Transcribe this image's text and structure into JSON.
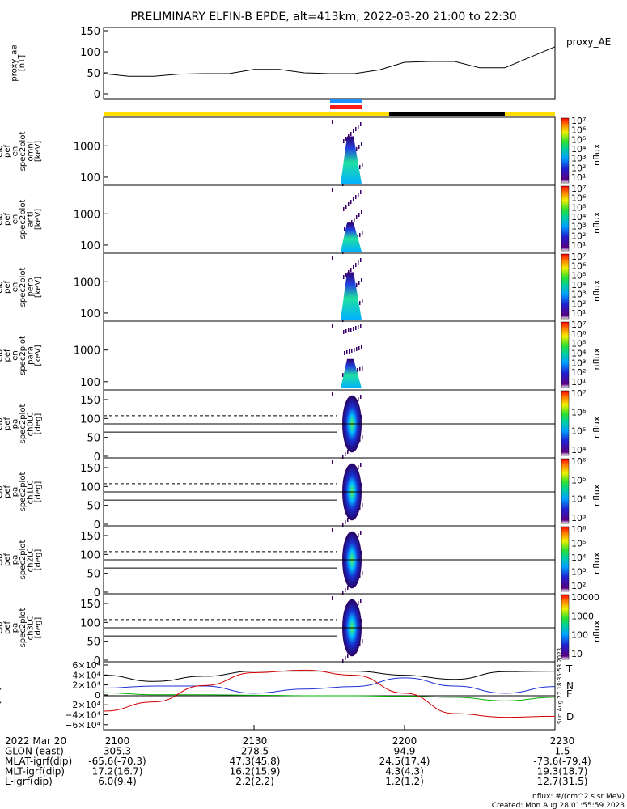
{
  "title": "PRELIMINARY ELFIN-B EPDE, alt=413km, 2022-03-20 21:00 to 22:30",
  "colors": {
    "yellow_bar": "#ffdd00",
    "black_bar": "#000000",
    "blue_marker": "#1e8fff",
    "red_marker": "#ff1a1a",
    "line_T": "#000000",
    "line_N": "#1f2fd6",
    "line_E": "#00b000",
    "line_D": "#d40000"
  },
  "legend_labels": {
    "proxy_ae": "proxy_AE",
    "T": "T",
    "N": "N",
    "E": "E",
    "D": "D",
    "side_stamp": "Sun Aug 27 18:35:58 2023"
  },
  "ylabels": [
    [
      "proxy_ae",
      "[nT]"
    ],
    [
      "elb",
      "pef",
      "en",
      "spec2plot",
      "omni",
      "[keV]"
    ],
    [
      "elb",
      "pef",
      "en",
      "spec2plot",
      "anti",
      "[keV]"
    ],
    [
      "elb",
      "pef",
      "en",
      "spec2plot",
      "perp",
      "[keV]"
    ],
    [
      "elb",
      "pef",
      "en",
      "spec2plot",
      "para",
      "[keV]"
    ],
    [
      "elb",
      "pef",
      "pa",
      "spec2plot",
      "ch0LC",
      "[deg]"
    ],
    [
      "elb",
      "pef",
      "pa",
      "spec2plot",
      "ch1LC",
      "[deg]"
    ],
    [
      "elb",
      "pef",
      "pa",
      "spec2plot",
      "ch2LC",
      "[deg]"
    ],
    [
      "elb",
      "pef",
      "pa",
      "spec2plot",
      "ch3LC",
      "[deg]"
    ],
    [
      "IGRF",
      "[nT]"
    ]
  ],
  "yticks": {
    "ae": [
      "150",
      "100",
      "50",
      "0"
    ],
    "energy": [
      "1000",
      "100"
    ],
    "pitch": [
      "150",
      "100",
      "50",
      "0"
    ],
    "igrf": [
      "6×10⁴",
      "4×10⁴",
      "2×10⁴",
      "0",
      "−2×10⁴",
      "−4×10⁴",
      "−6×10⁴"
    ]
  },
  "colorbars": [
    {
      "label": "nflux",
      "ticks": [
        "10⁷",
        "10⁶",
        "10⁵",
        "10⁴",
        "10³",
        "10²",
        "10¹"
      ]
    },
    {
      "label": "nflux",
      "ticks": [
        "10⁷",
        "10⁶",
        "10⁵",
        "10⁴",
        "10³",
        "10²",
        "10¹"
      ]
    },
    {
      "label": "nflux",
      "ticks": [
        "10⁷",
        "10⁶",
        "10⁵",
        "10⁴",
        "10³",
        "10²",
        "10¹"
      ]
    },
    {
      "label": "nflux",
      "ticks": [
        "10⁷",
        "10⁶",
        "10⁵",
        "10⁴",
        "10³",
        "10²",
        "10¹"
      ]
    },
    {
      "label": "nflux",
      "ticks": [
        "10⁷",
        "10⁶",
        "10⁵",
        "10⁴"
      ]
    },
    {
      "label": "nflux",
      "ticks": [
        "10⁶",
        "10⁵",
        "10⁴",
        "10³"
      ]
    },
    {
      "label": "nflux",
      "ticks": [
        "10⁶",
        "10⁵",
        "10⁴",
        "10³",
        "10²"
      ]
    },
    {
      "label": "nflux",
      "ticks": [
        "10000",
        "1000",
        "100",
        "10"
      ]
    }
  ],
  "footer": {
    "rows": [
      [
        "2022 Mar 20",
        "2100",
        "2130",
        "2200",
        "2230"
      ],
      [
        "GLON (east)",
        "305.3",
        "278.5",
        "94.9",
        "1.5"
      ],
      [
        "MLAT-igrf(dip)",
        "-65.6(-70.3)",
        "47.3(45.8)",
        "24.5(17.4)",
        "-73.6(-79.4)"
      ],
      [
        "MLT-igrf(dip)",
        "17.2(16.7)",
        "16.2(15.9)",
        "4.3(4.3)",
        "19.3(18.7)"
      ],
      [
        "L-igrf(dip)",
        "6.0(9.4)",
        "2.2(2.2)",
        "1.2(1.2)",
        "12.7(31.5)"
      ]
    ],
    "units": "nflux: #/(cm^2 s sr MeV)",
    "created": "Created: Mon Aug 28 01:55:59 2023"
  },
  "chart_data": {
    "type": "line",
    "title": "PRELIMINARY ELFIN-B EPDE, alt=413km, 2022-03-20 21:00 to 22:30",
    "x_ticks": [
      "2100",
      "2130",
      "2200",
      "2230"
    ],
    "xlim": [
      "21:00",
      "22:30"
    ],
    "panels": [
      {
        "name": "proxy_AE",
        "ylim": [
          0,
          150
        ],
        "series": [
          {
            "name": "proxy_AE",
            "x": [
              "21:00",
              "21:05",
              "21:10",
              "21:15",
              "21:20",
              "21:25",
              "21:30",
              "21:35",
              "21:40",
              "21:45",
              "21:50",
              "21:55",
              "22:00",
              "22:05",
              "22:10",
              "22:15",
              "22:20",
              "22:25",
              "22:30"
            ],
            "values": [
              48,
              42,
              42,
              47,
              48,
              48,
              58,
              58,
              50,
              48,
              48,
              57,
              75,
              77,
              77,
              62,
              62,
              87,
              112
            ]
          }
        ]
      },
      {
        "name": "IGRF",
        "ylim": [
          -60000,
          60000
        ],
        "series": [
          {
            "name": "T",
            "x": [
              "21:00",
              "21:10",
              "21:20",
              "21:30",
              "21:40",
              "21:50",
              "22:00",
              "22:10",
              "22:20",
              "22:30"
            ],
            "values": [
              40000,
              28000,
              38000,
              48000,
              48000,
              48000,
              40000,
              32000,
              47000,
              48000
            ]
          },
          {
            "name": "N",
            "x": [
              "21:00",
              "21:10",
              "21:20",
              "21:30",
              "21:40",
              "21:50",
              "22:00",
              "22:10",
              "22:20",
              "22:30"
            ],
            "values": [
              15000,
              19000,
              19000,
              5000,
              13000,
              18000,
              35000,
              19000,
              5000,
              18000
            ]
          },
          {
            "name": "E",
            "x": [
              "21:00",
              "21:10",
              "21:20",
              "21:30",
              "21:40",
              "21:50",
              "22:00",
              "22:10",
              "22:20",
              "22:30"
            ],
            "values": [
              6000,
              2000,
              2000,
              1000,
              0,
              0,
              -1000,
              -3000,
              -10000,
              -3000
            ]
          },
          {
            "name": "D",
            "x": [
              "21:00",
              "21:10",
              "21:20",
              "21:30",
              "21:40",
              "21:50",
              "22:00",
              "22:10",
              "22:20",
              "22:30"
            ],
            "values": [
              -30000,
              -12000,
              20000,
              45000,
              50000,
              40000,
              5000,
              -35000,
              -42000,
              -40000
            ]
          }
        ]
      }
    ]
  }
}
